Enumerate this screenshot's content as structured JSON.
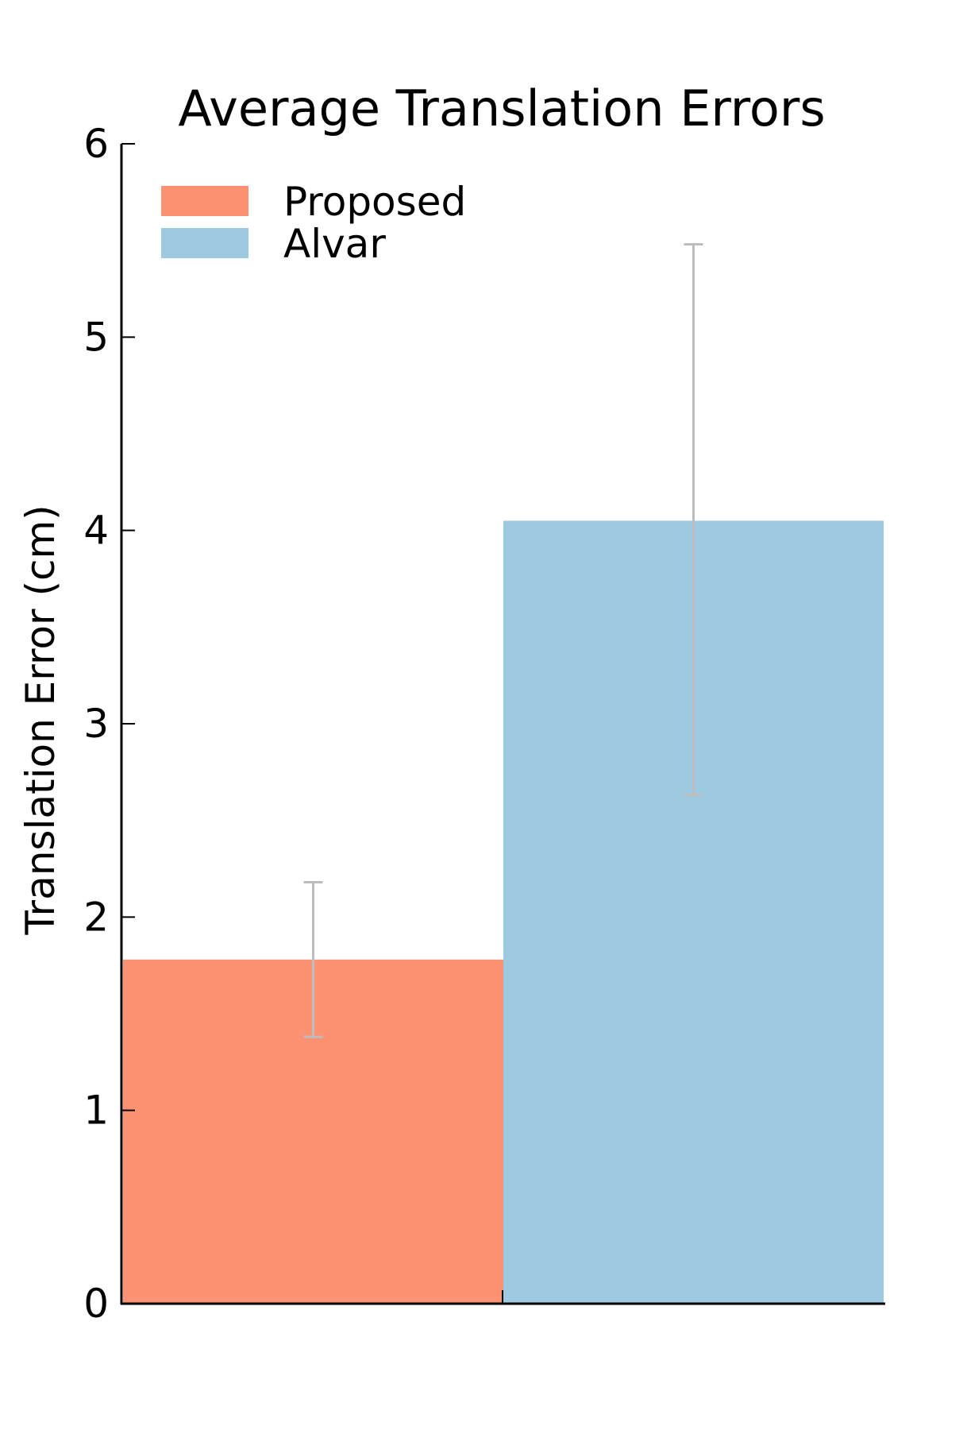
{
  "chart_data": {
    "type": "bar",
    "title": "Average Translation Errors",
    "xlabel": "",
    "ylabel": "Translation Error (cm)",
    "categories": [
      "Proposed",
      "Alvar"
    ],
    "values": [
      1.78,
      4.05
    ],
    "error_bars": [
      {
        "low": 1.38,
        "high": 2.18
      },
      {
        "low": 2.63,
        "high": 5.48
      }
    ],
    "ylim": [
      0,
      6
    ],
    "yticks": [
      "0",
      "1",
      "2",
      "3",
      "4",
      "5",
      "6"
    ],
    "grid": false,
    "legend_position": "top-left",
    "legend": [
      {
        "label": "Proposed",
        "color": "#fc9272"
      },
      {
        "label": "Alvar",
        "color": "#9ecae1"
      }
    ],
    "colors": {
      "Proposed": "#fc9272",
      "Alvar": "#9ecae1",
      "error_bar": "#bdbdbd",
      "axis": "#000000"
    }
  }
}
